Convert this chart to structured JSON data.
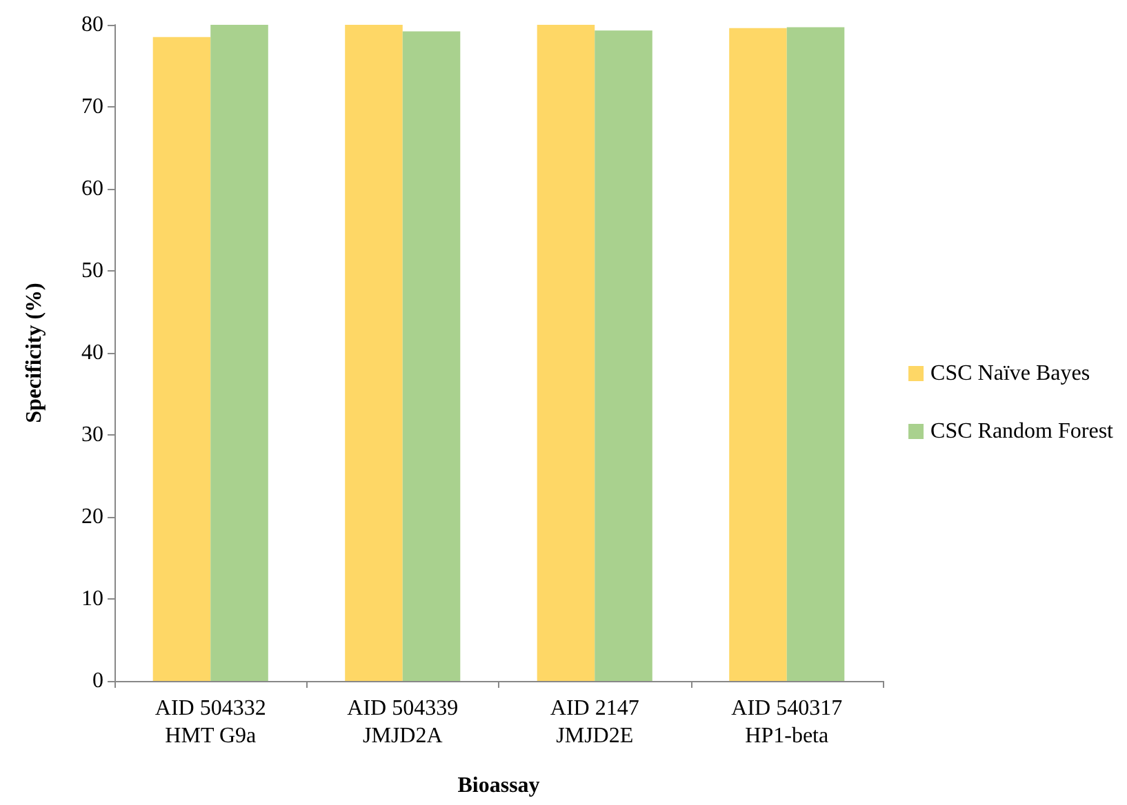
{
  "chart_data": {
    "type": "bar",
    "xlabel": "Bioassay",
    "ylabel": "Specificity (%)",
    "categories": [
      "AID 504332\nHMT G9a",
      "AID 504339\nJMJD2A",
      "AID 2147\nJMJD2E",
      "AID 540317\nHP1-beta"
    ],
    "series": [
      {
        "name": "CSC Naïve Bayes",
        "color": "#fed766",
        "values": [
          78.5,
          80.0,
          80.0,
          79.6
        ]
      },
      {
        "name": "CSC Random Forest",
        "color": "#a9d18e",
        "values": [
          80.0,
          79.2,
          79.3,
          79.7
        ]
      }
    ],
    "ylim": [
      0,
      80
    ],
    "yticks": [
      0,
      10,
      20,
      30,
      40,
      50,
      60,
      70,
      80
    ],
    "grid": false,
    "legend": "right"
  }
}
